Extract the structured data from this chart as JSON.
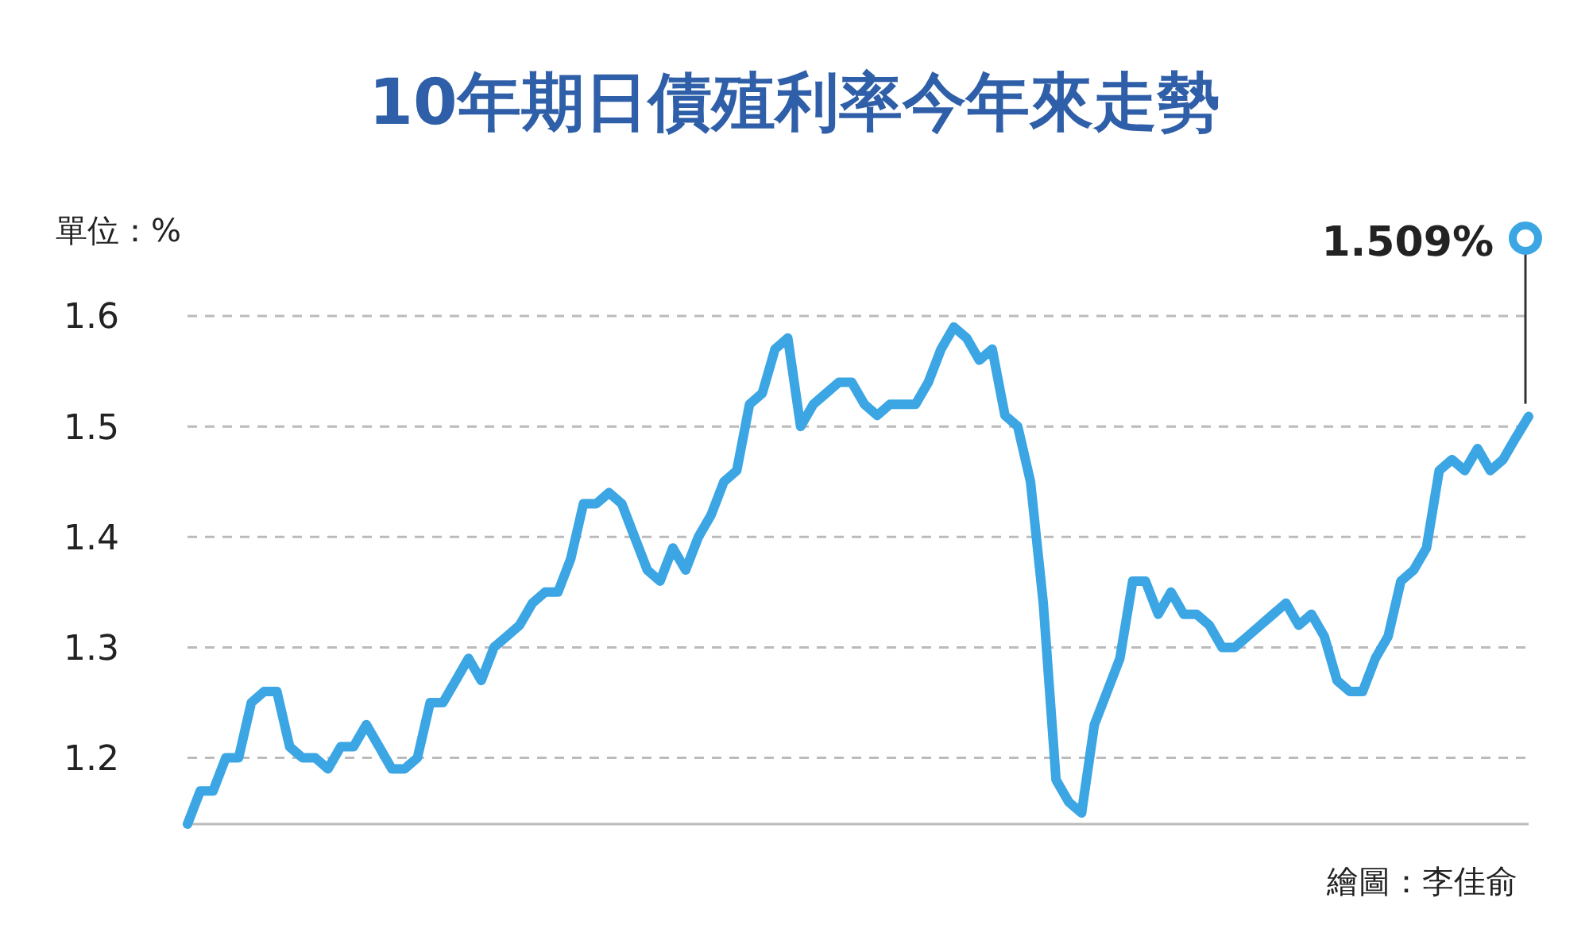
{
  "chart_data": {
    "type": "line",
    "title": "10年期日債殖利率今年來走勢",
    "ylabel": "單位：%",
    "categories": [
      null,
      null,
      null,
      null,
      null,
      null,
      null,
      null,
      null,
      null,
      null,
      null,
      null,
      null,
      null,
      null,
      null,
      null,
      null,
      null,
      null,
      null,
      null,
      null,
      null,
      null,
      null,
      null,
      null,
      null,
      null,
      null,
      null,
      null,
      null,
      null,
      null,
      null,
      null,
      null,
      null,
      null,
      null,
      null,
      null,
      null,
      null,
      null,
      null,
      null,
      null,
      null,
      null,
      null,
      null,
      null,
      null,
      null,
      null,
      null,
      null,
      null,
      null,
      null,
      null,
      null,
      null,
      null,
      null,
      null,
      null,
      null,
      null,
      null,
      null,
      null,
      null,
      null,
      null,
      null,
      null,
      null,
      null,
      null,
      null,
      null,
      null,
      null,
      null,
      null,
      null,
      null,
      null,
      null,
      null,
      null,
      null,
      null,
      null,
      null,
      null,
      null,
      null,
      null,
      null,
      null
    ],
    "series": [
      {
        "color": "#3ba6e3",
        "values": [
          1.14,
          1.17,
          1.17,
          1.2,
          1.2,
          1.25,
          1.26,
          1.26,
          1.21,
          1.2,
          1.2,
          1.19,
          1.21,
          1.21,
          1.23,
          1.21,
          1.19,
          1.19,
          1.2,
          1.25,
          1.25,
          1.27,
          1.29,
          1.27,
          1.3,
          1.31,
          1.32,
          1.34,
          1.35,
          1.35,
          1.38,
          1.43,
          1.43,
          1.44,
          1.43,
          1.4,
          1.37,
          1.36,
          1.39,
          1.37,
          1.4,
          1.42,
          1.45,
          1.46,
          1.52,
          1.53,
          1.57,
          1.58,
          1.5,
          1.52,
          1.53,
          1.54,
          1.54,
          1.52,
          1.51,
          1.52,
          1.52,
          1.52,
          1.54,
          1.57,
          1.59,
          1.58,
          1.56,
          1.57,
          1.51,
          1.5,
          1.45,
          1.34,
          1.18,
          1.16,
          1.15,
          1.23,
          1.26,
          1.29,
          1.36,
          1.36,
          1.33,
          1.35,
          1.33,
          1.33,
          1.32,
          1.3,
          1.3,
          1.31,
          1.32,
          1.33,
          1.34,
          1.32,
          1.33,
          1.31,
          1.27,
          1.26,
          1.26,
          1.29,
          1.31,
          1.36,
          1.37,
          1.39,
          1.46,
          1.47,
          1.46,
          1.48,
          1.46,
          1.47,
          1.49,
          1.509
        ]
      }
    ],
    "ylim": [
      1.14,
      1.6
    ],
    "yticks": [
      1.2,
      1.3,
      1.4,
      1.5,
      1.6
    ],
    "grid": "y",
    "marker": "none",
    "line_style": "solid",
    "tick_labels": "y",
    "annotations": [
      "1.509%",
      "繪圖：李佳俞"
    ]
  }
}
